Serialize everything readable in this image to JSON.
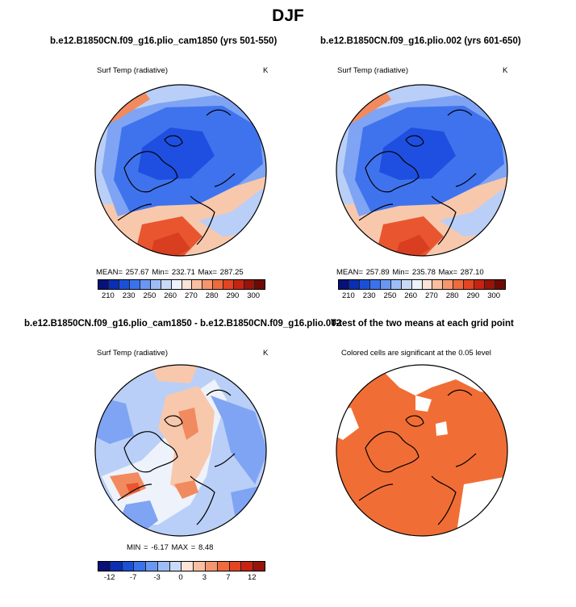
{
  "figure_title": "DJF",
  "panels": {
    "top_left": {
      "title": "b.e12.B1850CN.f09_g16.plio_cam1850 (yrs 501-550)",
      "variable": "Surf Temp (radiative)",
      "units": "K",
      "stats": "MEAN=  257.67   Min=  232.71   Max=  287.25"
    },
    "top_right": {
      "title": "b.e12.B1850CN.f09_g16.plio.002 (yrs 601-650)",
      "variable": "Surf Temp (radiative)",
      "units": "K",
      "stats": "MEAN=  257.89   Min=  235.78   Max=  287.10"
    },
    "bottom_left": {
      "title": "b.e12.B1850CN.f09_g16.plio_cam1850 - b.e12.B1850CN.f09_g16.plio.002",
      "variable": "Surf Temp (radiative)",
      "units": "K",
      "stats": "MIN  =    -6.17  MAX  =     8.48"
    },
    "bottom_right": {
      "title": "T-test of the two means at each grid point",
      "note": "Colored cells are significant at the 0.05 level"
    }
  },
  "colorbars": {
    "absolute": {
      "ticks": [
        "210",
        "230",
        "250",
        "260",
        "270",
        "280",
        "290",
        "300"
      ],
      "colors": [
        "#08107a",
        "#0a2fb5",
        "#1a50d8",
        "#3a72ee",
        "#6a97f4",
        "#9dbdf7",
        "#c9daf8",
        "#eef3fb",
        "#fce3d6",
        "#f9bfa0",
        "#f5966c",
        "#ef6a3c",
        "#e44421",
        "#c82312",
        "#97140a",
        "#6d0a05"
      ]
    },
    "difference": {
      "ticks": [
        "-12",
        "-7",
        "-3",
        "0",
        "3",
        "7",
        "12"
      ],
      "colors": [
        "#08107a",
        "#0a2fb5",
        "#1a50d8",
        "#3a72ee",
        "#6a97f4",
        "#9dbdf7",
        "#c9daf8",
        "#fce3d6",
        "#f9bfa0",
        "#f5966c",
        "#ef6a3c",
        "#e44421",
        "#c82312",
        "#97140a"
      ]
    }
  },
  "map_colors": {
    "cold_core": "#1e4fe0",
    "cold": "#3f73ee",
    "cool": "#7fa4f3",
    "cool_light": "#b9cff7",
    "neutral": "#eef2fa",
    "warm_light": "#f8c8ad",
    "warm": "#f28a5f",
    "warm_strong": "#e8552f",
    "hot": "#d83e1f",
    "sig": "#f06e35"
  }
}
